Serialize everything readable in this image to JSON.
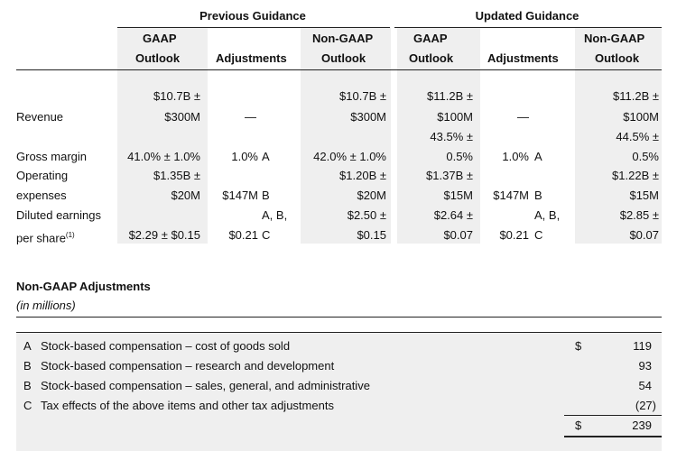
{
  "guidance": {
    "previous_title": "Previous Guidance",
    "updated_title": "Updated Guidance",
    "col_headers": [
      {
        "line1": "GAAP",
        "line2": "Outlook"
      },
      {
        "line1": "",
        "line2": "Adjustments"
      },
      {
        "line1": "Non-GAAP",
        "line2": "Outlook"
      },
      {
        "line1": "GAAP",
        "line2": "Outlook"
      },
      {
        "line1": "",
        "line2": "Adjustments"
      },
      {
        "line1": "Non-GAAP",
        "line2": "Outlook"
      }
    ],
    "rows": {
      "revenue": {
        "label": "Revenue",
        "prev_gaap": [
          "$10.7B ±",
          "$300M"
        ],
        "prev_adj": "—",
        "prev_nongaap": [
          "$10.7B ±",
          "$300M"
        ],
        "upd_gaap": [
          "$11.2B ±",
          "$100M"
        ],
        "upd_adj": "—",
        "upd_nongaap": [
          "$11.2B ±",
          "$100M"
        ]
      },
      "gross_margin": {
        "label": "Gross margin",
        "prev_gaap": "41.0% ± 1.0%",
        "prev_adj": "1.0%",
        "prev_adj_code": "A",
        "prev_nongaap": "42.0% ± 1.0%",
        "upd_gaap": [
          "43.5% ±",
          "0.5%"
        ],
        "upd_adj": "1.0%",
        "upd_adj_code": "A",
        "upd_nongaap": [
          "44.5% ±",
          "0.5%"
        ]
      },
      "operating_expenses": {
        "label": [
          "Operating",
          "expenses"
        ],
        "prev_gaap": [
          "$1.35B ±",
          "$20M"
        ],
        "prev_adj": "$147M",
        "prev_adj_code": "B",
        "prev_nongaap": [
          "$1.20B ±",
          "$20M"
        ],
        "upd_gaap": [
          "$1.37B ±",
          "$15M"
        ],
        "upd_adj": "$147M",
        "upd_adj_code": "B",
        "upd_nongaap": [
          "$1.22B ±",
          "$15M"
        ]
      },
      "diluted_eps": {
        "label": [
          "Diluted earnings",
          "per share"
        ],
        "label_sup": "(1)",
        "prev_gaap": "$2.29 ± $0.15",
        "prev_adj": "$0.21",
        "prev_adj_code": [
          "A, B,",
          "C"
        ],
        "prev_nongaap": [
          "$2.50 ±",
          "$0.15"
        ],
        "upd_gaap": [
          "$2.64 ±",
          "$0.07"
        ],
        "upd_adj": "$0.21",
        "upd_adj_code": [
          "A, B,",
          "C"
        ],
        "upd_nongaap": [
          "$2.85 ±",
          "$0.07"
        ]
      }
    }
  },
  "adjustments": {
    "title": "Non-GAAP Adjustments",
    "subtitle": "(in millions)",
    "items": [
      {
        "code": "A",
        "desc": "Stock-based compensation – cost of goods sold",
        "dollar": "$",
        "amount": "119"
      },
      {
        "code": "B",
        "desc": "Stock-based compensation – research and development",
        "dollar": "",
        "amount": "93"
      },
      {
        "code": "B",
        "desc": "Stock-based compensation – sales, general, and administrative",
        "dollar": "",
        "amount": "54"
      },
      {
        "code": "C",
        "desc": "Tax effects of the above items and other tax adjustments",
        "dollar": "",
        "amount": "(27)"
      }
    ],
    "total": {
      "dollar": "$",
      "amount": "239"
    }
  }
}
